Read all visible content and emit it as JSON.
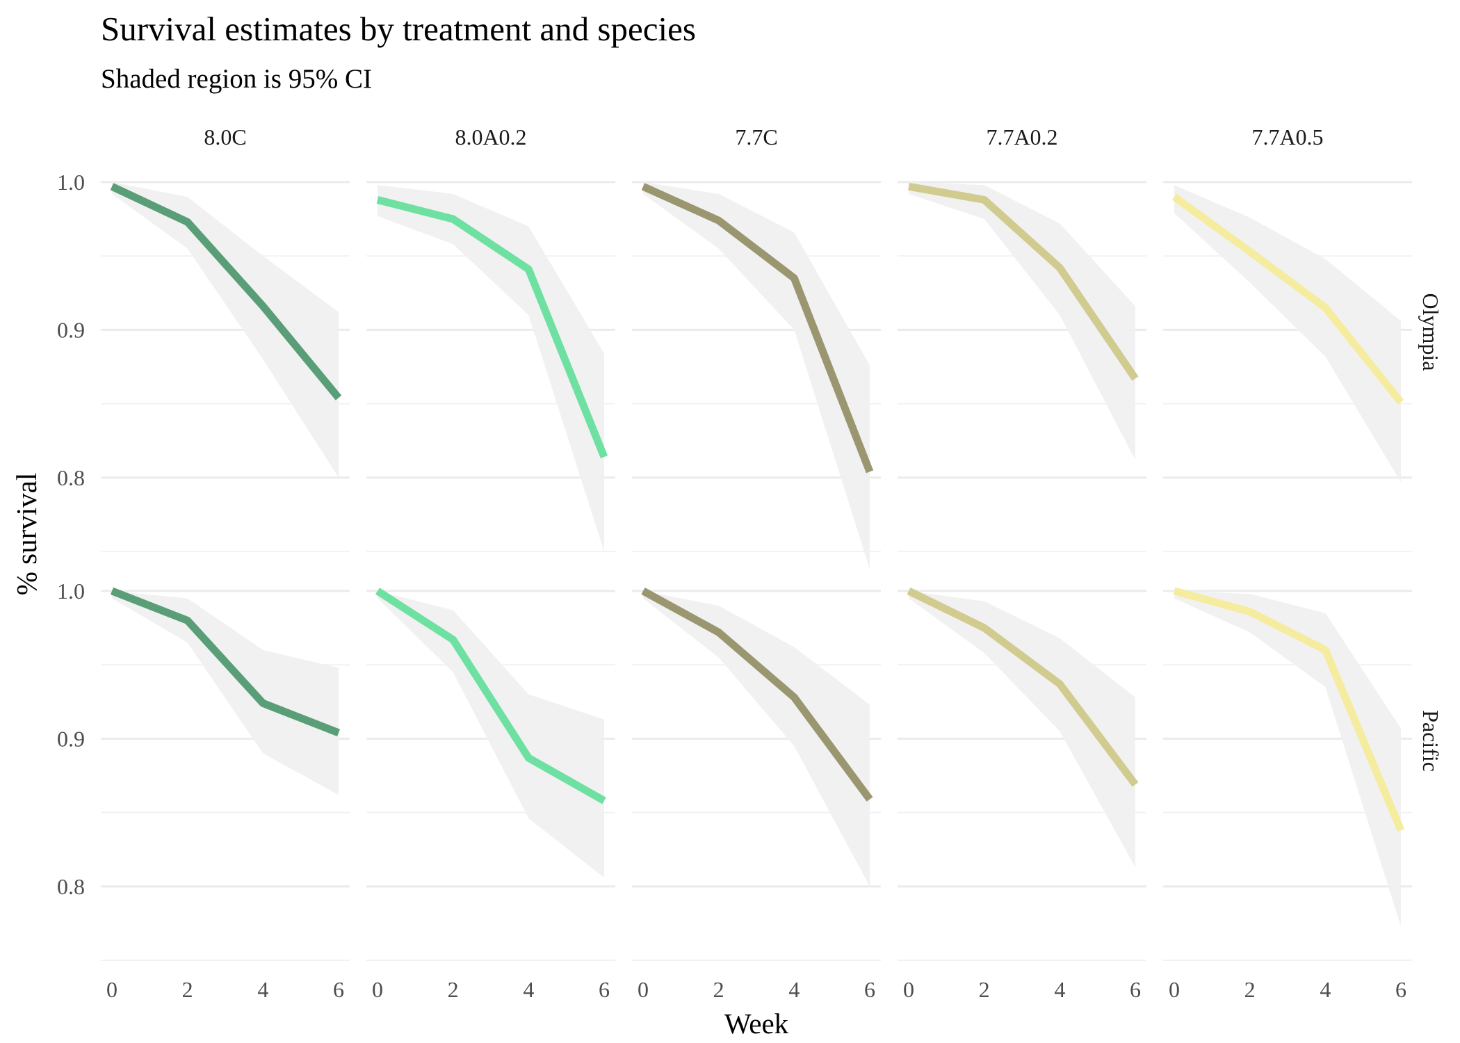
{
  "chart_data": {
    "type": "line",
    "title": "Survival estimates by treatment and species",
    "subtitle": "Shaded region is 95% CI",
    "xlabel": "Week",
    "ylabel": "% survival",
    "x": [
      0,
      2,
      4,
      6
    ],
    "x_ticks": [
      "0",
      "2",
      "4",
      "6"
    ],
    "y_ticks": [
      "0.8",
      "0.9",
      "1.0"
    ],
    "ylim": [
      0.75,
      1.0
    ],
    "xlim": [
      0,
      6
    ],
    "grid": true,
    "legend": "none",
    "columns": [
      "8.0C",
      "8.0A0.2",
      "7.7C",
      "7.7A0.2",
      "7.7A0.5"
    ],
    "rows": [
      "Olympia",
      "Pacific"
    ],
    "colors": {
      "8.0C": "#5a9e78",
      "8.0A0.2": "#6ee0a2",
      "7.7C": "#9a9670",
      "7.7A0.2": "#d1cb90",
      "7.7A0.5": "#f5ec9f"
    },
    "panels": [
      {
        "row": "Olympia",
        "col": "8.0C",
        "values": [
          0.997,
          0.973,
          0.916,
          0.854
        ],
        "lower": [
          0.992,
          0.955,
          0.88,
          0.8
        ],
        "upper": [
          1.0,
          0.99,
          0.95,
          0.912
        ]
      },
      {
        "row": "Olympia",
        "col": "8.0A0.2",
        "values": [
          0.988,
          0.975,
          0.941,
          0.814
        ],
        "lower": [
          0.977,
          0.958,
          0.91,
          0.75
        ],
        "upper": [
          0.998,
          0.992,
          0.97,
          0.884
        ]
      },
      {
        "row": "Olympia",
        "col": "7.7C",
        "values": [
          0.997,
          0.974,
          0.935,
          0.804
        ],
        "lower": [
          0.992,
          0.955,
          0.9,
          0.738
        ],
        "upper": [
          1.0,
          0.992,
          0.966,
          0.876
        ]
      },
      {
        "row": "Olympia",
        "col": "7.7A0.2",
        "values": [
          0.997,
          0.988,
          0.942,
          0.867
        ],
        "lower": [
          0.992,
          0.975,
          0.91,
          0.812
        ],
        "upper": [
          1.0,
          0.998,
          0.972,
          0.916
        ]
      },
      {
        "row": "Olympia",
        "col": "7.7A0.5",
        "values": [
          0.99,
          0.953,
          0.915,
          0.851
        ],
        "lower": [
          0.979,
          0.932,
          0.882,
          0.797
        ],
        "upper": [
          0.998,
          0.976,
          0.948,
          0.906
        ]
      },
      {
        "row": "Pacific",
        "col": "8.0C",
        "values": [
          1.0,
          0.98,
          0.924,
          0.904
        ],
        "lower": [
          0.995,
          0.965,
          0.89,
          0.862
        ],
        "upper": [
          1.0,
          0.995,
          0.96,
          0.948
        ]
      },
      {
        "row": "Pacific",
        "col": "8.0A0.2",
        "values": [
          1.0,
          0.967,
          0.887,
          0.858
        ],
        "lower": [
          0.995,
          0.945,
          0.846,
          0.806
        ],
        "upper": [
          1.0,
          0.987,
          0.93,
          0.913
        ]
      },
      {
        "row": "Pacific",
        "col": "7.7C",
        "values": [
          1.0,
          0.972,
          0.928,
          0.859
        ],
        "lower": [
          0.995,
          0.955,
          0.895,
          0.8
        ],
        "upper": [
          1.0,
          0.99,
          0.962,
          0.923
        ]
      },
      {
        "row": "Pacific",
        "col": "7.7A0.2",
        "values": [
          1.0,
          0.975,
          0.937,
          0.869
        ],
        "lower": [
          0.995,
          0.958,
          0.905,
          0.813
        ],
        "upper": [
          1.0,
          0.993,
          0.968,
          0.928
        ]
      },
      {
        "row": "Pacific",
        "col": "7.7A0.5",
        "values": [
          1.0,
          0.986,
          0.96,
          0.838
        ],
        "lower": [
          0.995,
          0.972,
          0.935,
          0.773
        ],
        "upper": [
          1.0,
          0.998,
          0.985,
          0.907
        ]
      }
    ]
  }
}
